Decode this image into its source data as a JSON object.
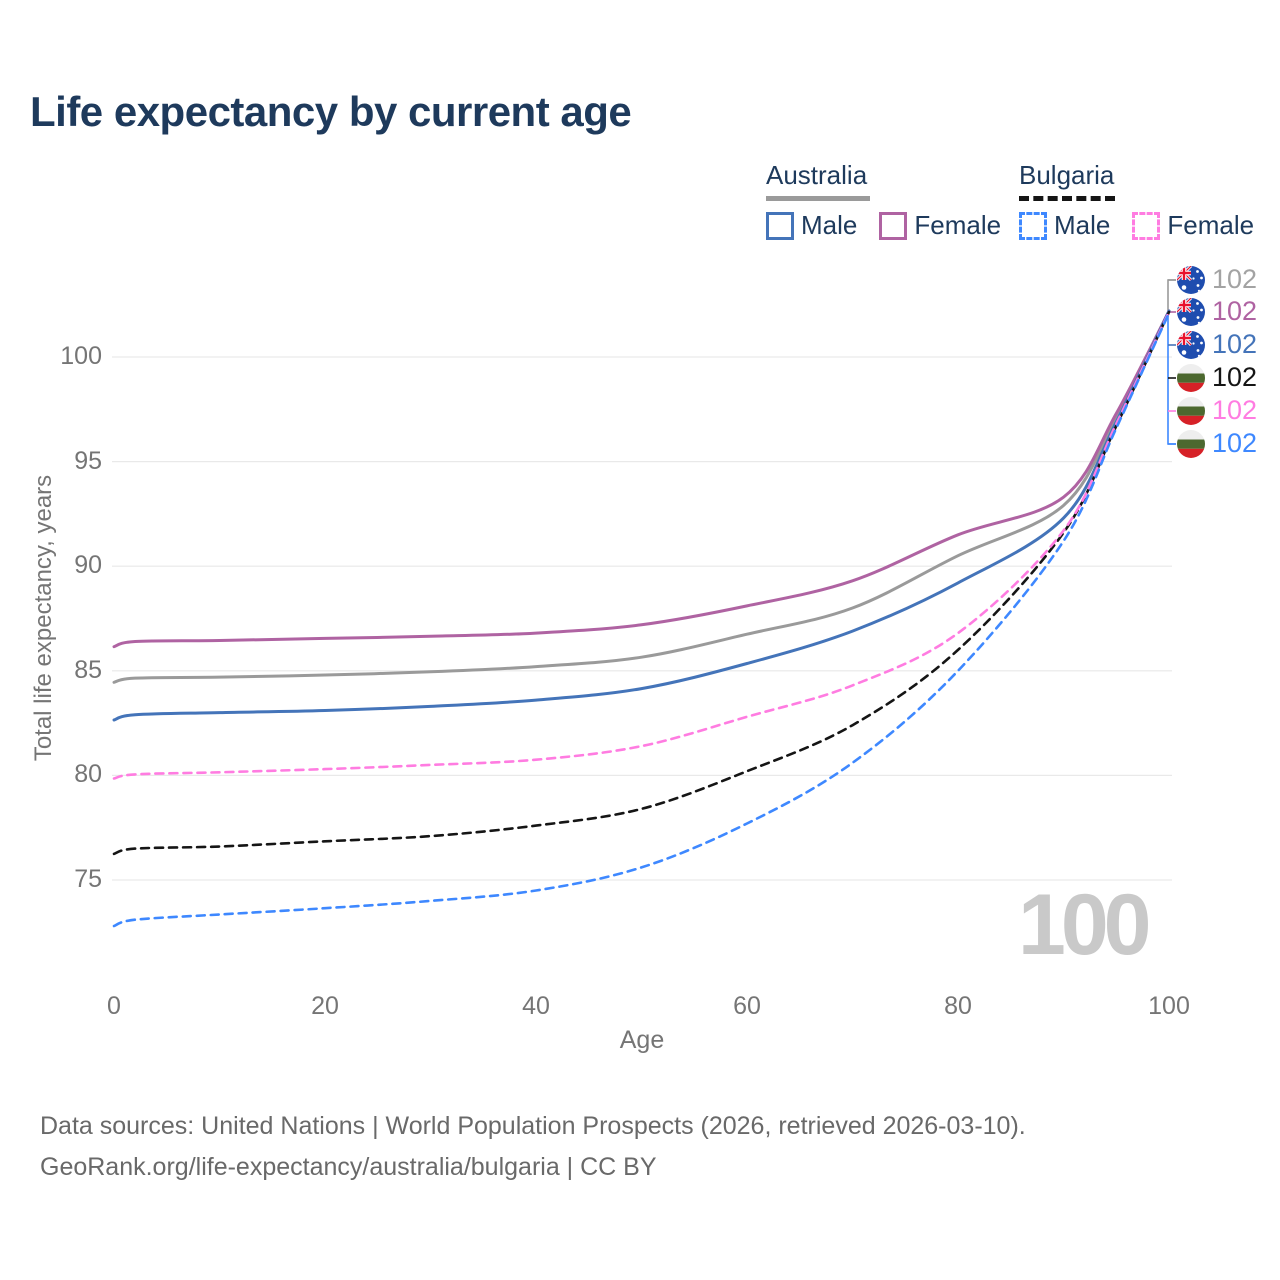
{
  "title": {
    "text": "Life expectancy by current age"
  },
  "colors": {
    "title_navy": "#1e3a5c",
    "axis_gray": "#757575",
    "gridline": "#e9e9e9",
    "watermark_gray": "#c9c9c9",
    "footer_gray": "#696969"
  },
  "legend": {
    "groups": [
      {
        "country": "Australia",
        "line_style": "solid",
        "items": [
          {
            "label": "Male"
          },
          {
            "label": "Female"
          }
        ]
      },
      {
        "country": "Bulgaria",
        "line_style": "dashed",
        "items": [
          {
            "label": "Male"
          },
          {
            "label": "Female"
          }
        ]
      }
    ]
  },
  "chart_data": {
    "type": "line",
    "title": "Life expectancy by current age",
    "xlabel": "Age",
    "ylabel": "Total life expectancy, years",
    "x_ticks": [
      0,
      20,
      40,
      60,
      80,
      100
    ],
    "y_ticks": [
      75,
      80,
      85,
      90,
      95,
      100
    ],
    "xlim": [
      0,
      100
    ],
    "ylim": [
      71,
      103
    ],
    "grid": "horizontal-only",
    "legend_position": "top-right",
    "watermark": "100",
    "x": [
      0,
      2,
      10,
      20,
      30,
      40,
      50,
      60,
      70,
      80,
      90,
      95,
      100
    ],
    "series": [
      {
        "name": "Australia - Both sexes",
        "country": "Australia",
        "sex": "Both",
        "color": "#9a9a9a",
        "dashed": false,
        "end_label": "102",
        "flag": "australia-flag-icon",
        "values": [
          84.45,
          84.65,
          84.7,
          84.8,
          84.95,
          85.2,
          85.65,
          86.75,
          88.0,
          90.5,
          92.9,
          97.1,
          102.2
        ]
      },
      {
        "name": "Australia - Female",
        "country": "Australia",
        "sex": "Female",
        "color": "#af63a2",
        "dashed": false,
        "end_label": "102",
        "flag": "australia-flag-icon",
        "values": [
          86.15,
          86.4,
          86.45,
          86.55,
          86.65,
          86.8,
          87.2,
          88.1,
          89.3,
          91.5,
          93.3,
          97.3,
          102.2
        ]
      },
      {
        "name": "Australia - Male",
        "country": "Australia",
        "sex": "Male",
        "color": "#4474b9",
        "dashed": false,
        "end_label": "102",
        "flag": "australia-flag-icon",
        "values": [
          82.65,
          82.9,
          83.0,
          83.1,
          83.3,
          83.6,
          84.15,
          85.35,
          86.9,
          89.2,
          92.3,
          96.9,
          102.2
        ]
      },
      {
        "name": "Bulgaria - Both sexes",
        "country": "Bulgaria",
        "sex": "Both",
        "color": "#151515",
        "dashed": true,
        "end_label": "102",
        "flag": "bulgaria-flag-icon",
        "values": [
          76.25,
          76.5,
          76.6,
          76.85,
          77.1,
          77.6,
          78.4,
          80.2,
          82.4,
          86.0,
          91.6,
          96.7,
          102.15
        ]
      },
      {
        "name": "Bulgaria - Female",
        "country": "Bulgaria",
        "sex": "Female",
        "color": "#ff7ce1",
        "dashed": true,
        "end_label": "102",
        "flag": "bulgaria-flag-icon",
        "values": [
          79.85,
          80.05,
          80.15,
          80.3,
          80.5,
          80.75,
          81.4,
          82.8,
          84.3,
          86.8,
          91.7,
          96.8,
          102.15
        ]
      },
      {
        "name": "Bulgaria - Male",
        "country": "Bulgaria",
        "sex": "Male",
        "color": "#3e88ff",
        "dashed": true,
        "end_label": "102",
        "flag": "bulgaria-flag-icon",
        "values": [
          72.8,
          73.1,
          73.35,
          73.65,
          74.0,
          74.5,
          75.6,
          77.7,
          80.6,
          85.0,
          91.2,
          96.6,
          102.1
        ]
      }
    ],
    "flag_colors": {
      "australia_blue": "#1f4daf",
      "jack_red": "#e8112d",
      "jack_white": "#ffffff",
      "bulgaria_white": "#eeeeee",
      "bulgaria_green": "#4c682f",
      "bulgaria_red": "#d62127"
    }
  },
  "footer": {
    "line1": "Data sources: United Nations | World Population Prospects (2026, retrieved 2026-03-10).",
    "line2": "GeoRank.org/life-expectancy/australia/bulgaria | CC BY"
  }
}
